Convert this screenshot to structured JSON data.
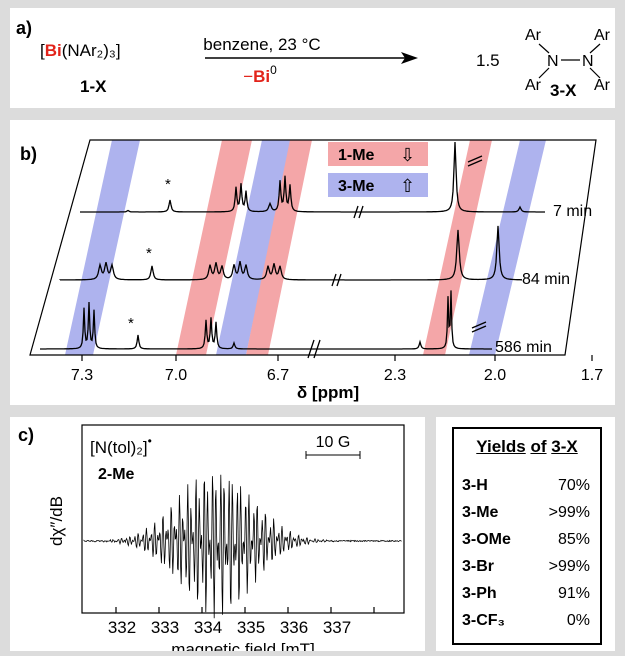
{
  "panel_a": {
    "label": "a)",
    "reactant_prefix": "[",
    "reactant_bi": "Bi",
    "reactant_rest": "(NAr₂)₃]",
    "reactant_id": "1-X",
    "conditions": "benzene, 23 °C",
    "byproduct_prefix": "−",
    "byproduct_bi": "Bi",
    "byproduct_sup": "0",
    "coefficient": "1.5",
    "product_ar": "Ar",
    "product_n": "N",
    "product_id": "3-X",
    "bi_color": "#e2231a"
  },
  "panel_b": {
    "label": "b)",
    "legend": [
      {
        "name": "1-Me",
        "arrow": "⇩",
        "color": "#f4a6a8"
      },
      {
        "name": "3-Me",
        "arrow": "⇧",
        "color": "#aeb3ee"
      }
    ],
    "times": [
      "7 min",
      "84 min",
      "586 min"
    ],
    "axis_ticks": [
      "7.3",
      "7.0",
      "6.7",
      "2.3",
      "2.0",
      "1.7"
    ],
    "axis_label": "δ [ppm]",
    "marker": "*"
  },
  "panel_c": {
    "label": "c)",
    "radical": "[N(tol)₂]",
    "radical_dot": "•",
    "compound": "2-Me",
    "scale_bar": "10 G",
    "ylabel": "dχ″/dB",
    "xlabel": "magnetic field [mT]",
    "x_ticks": [
      "332",
      "333",
      "334",
      "335",
      "336",
      "337"
    ]
  },
  "yields": {
    "title_a": "Yields",
    "title_b": "of",
    "title_c": "3-X",
    "rows": [
      {
        "compound": "3-H",
        "yield": "70%"
      },
      {
        "compound": "3-Me",
        "yield": ">99%"
      },
      {
        "compound": "3-OMe",
        "yield": "85%"
      },
      {
        "compound": "3-Br",
        "yield": ">99%"
      },
      {
        "compound": "3-Ph",
        "yield": "91%"
      },
      {
        "compound": "3-CF₃",
        "yield": "0%"
      }
    ]
  }
}
